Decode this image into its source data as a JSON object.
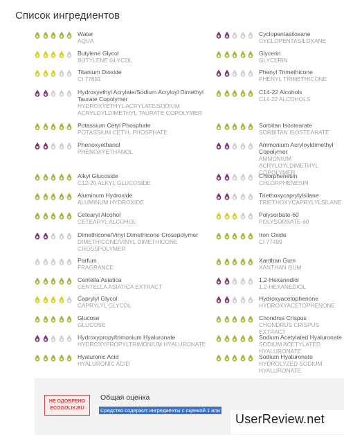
{
  "title": "Список ингредиентов",
  "colors": {
    "green": "#a8b53a",
    "yellow": "#d9cf1e",
    "purple": "#7d3a78",
    "grey": "#cfcfcf"
  },
  "left": [
    {
      "name": "Water",
      "inci": "AQUA",
      "rating": 5,
      "color": "green"
    },
    {
      "name": "Butylene Glycol",
      "inci": "BUTYLENE GLYCOL",
      "rating": 4,
      "color": "yellow"
    },
    {
      "name": "Titanium Dioxide",
      "inci": "CI 77891",
      "rating": 3,
      "color": "yellow"
    },
    {
      "name": "Hydroxyethyl Acrylate/Sodium Acryloyl Dimethyl Taurate Copolymer",
      "inci": "HYDROXYETHYL ACRYLATE/SODIUM ACRYLOYLDIMETHYL TAURATE COPOLYMER",
      "rating": 2,
      "color": "purple"
    },
    {
      "name": "Potassium Cetyl Phosphate",
      "inci": "POTASSIUM CETYL PHOSPHATE",
      "rating": 5,
      "color": "green"
    },
    {
      "name": "Phenoxyethanol",
      "inci": "PHENOXYETHANOL",
      "rating": 2,
      "color": "purple"
    },
    {
      "name": "Alkyl Glucoside",
      "inci": "C12-20 ALKYL GLUCOSIDE",
      "rating": 5,
      "color": "green"
    },
    {
      "name": "Aluminum Hydroxide",
      "inci": "ALUMINUM HYDROXIDE",
      "rating": 5,
      "color": "green"
    },
    {
      "name": "Cetearyl Alcohol",
      "inci": "CETEARYL ALCOHOL",
      "rating": 5,
      "color": "green"
    },
    {
      "name": "Dimethicone/Vinyl Dimethicone Crosspolymer",
      "inci": "DIMETHICONE/VINYL DIMETHICONE CROSSPOLYMER",
      "rating": 2,
      "color": "purple"
    },
    {
      "name": "Parfum",
      "inci": "FRAGRANCE",
      "rating": 0,
      "color": "grey"
    },
    {
      "name": "Centella Asiatica",
      "inci": "CENTELLA ASIATICA EXTRACT",
      "rating": 5,
      "color": "green"
    },
    {
      "name": "Caprylyl Glycol",
      "inci": "CAPRYLYL GLYCOL",
      "rating": 4,
      "color": "yellow"
    },
    {
      "name": "Glucose",
      "inci": "GLUCOSE",
      "rating": 5,
      "color": "green"
    },
    {
      "name": "Hydroxypropyltrimonium Hyaluronate",
      "inci": "HYDROXYPROPYLTRIMONIUM HYALURONATE",
      "rating": 2,
      "color": "purple"
    },
    {
      "name": "Hyaluronic Acid",
      "inci": "HYALURONIC ACID",
      "rating": 5,
      "color": "green"
    }
  ],
  "right": [
    {
      "name": "Cyclopentasiloxane",
      "inci": "CYCLOPENTASILOXANE",
      "rating": 2,
      "color": "purple"
    },
    {
      "name": "Glycerin",
      "inci": "GLYCERIN",
      "rating": 5,
      "color": "green"
    },
    {
      "name": "Phenyl Trimethicone",
      "inci": "PHENYL TRIMETHICONE",
      "rating": 2,
      "color": "purple"
    },
    {
      "name": "C14-22 Alcohols",
      "inci": "C14-22 ALCOHOLS",
      "rating": 5,
      "color": "green"
    },
    {
      "name": "Sorbitan Isostearate",
      "inci": "SORBITAN ISOSTEARATE",
      "rating": 5,
      "color": "green"
    },
    {
      "name": "Ammonium Acryloyldimethyl Copolymer",
      "inci": "AMMONIUM ACRYLOYLDIMETHYL COPOLYMER",
      "rating": 2,
      "color": "purple"
    },
    {
      "name": "Chlorphenesin",
      "inci": "CHLORPHENESIN",
      "rating": 2,
      "color": "purple"
    },
    {
      "name": "Triethoxycaprylylsilane",
      "inci": "TRIETHOXYCAPRYLYLSILANE",
      "rating": 2,
      "color": "purple"
    },
    {
      "name": "Polysorbate-60",
      "inci": "POLYSORBATE-60",
      "rating": 3,
      "color": "yellow"
    },
    {
      "name": "Iron Oxide",
      "inci": "CI 77499",
      "rating": 5,
      "color": "green"
    },
    {
      "name": "Xanthan Gum",
      "inci": "XANTHAN GUM",
      "rating": 5,
      "color": "green"
    },
    {
      "name": "1,2-Hexanediol",
      "inci": "1,2-HEXANEDIOL",
      "rating": 2,
      "color": "purple"
    },
    {
      "name": "Hydroxyacetophenone",
      "inci": "HYDROXYACETOPHENONE",
      "rating": 2,
      "color": "purple"
    },
    {
      "name": "Chondrus Crispus",
      "inci": "CHONDRUS CRISPUS EXTRACT",
      "rating": 5,
      "color": "green"
    },
    {
      "name": "Sodium Acetylated Hyaluronate",
      "inci": "SODIUM ACETYLATED HYALURONATE",
      "rating": 5,
      "color": "green"
    },
    {
      "name": "Sodium Hyaluronate",
      "inci": "HYDROLYZED SODIUM HYALURONATE",
      "rating": 5,
      "color": "green"
    }
  ],
  "overall": {
    "stamp_line1": "НЕ ОДОБРЕНО",
    "stamp_line2": "ECOGOLIK.RU",
    "title": "Общая оценка",
    "note": "Средство содержит ингредиенты с оценкой 1 или"
  },
  "watermark": "UserReview.net"
}
